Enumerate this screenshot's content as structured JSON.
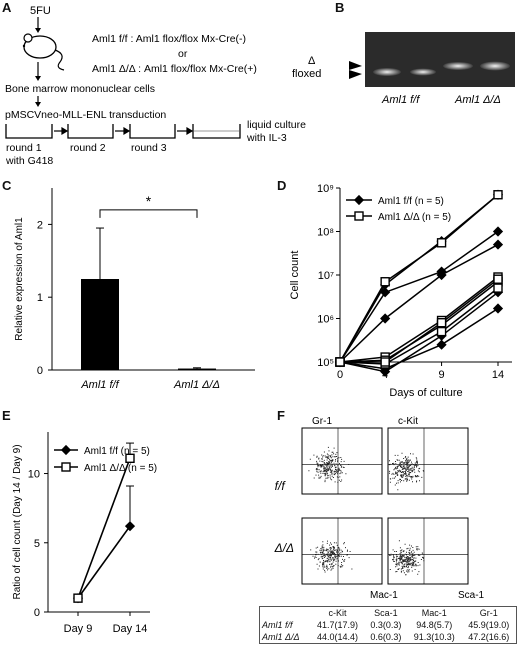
{
  "panels": {
    "A": "A",
    "B": "B",
    "C": "C",
    "D": "D",
    "E": "E",
    "F": "F"
  },
  "panelA": {
    "drug": "5FU",
    "genotype_ff": "Aml1 f/f : Aml1 flox/flox Mx-Cre(-)",
    "or": "or",
    "genotype_dd": "Aml1 Δ/Δ : Aml1 flox/flox Mx-Cre(+)",
    "cells": "Bone marrow mononuclear cells",
    "transduction": "pMSCVneo-MLL-ENL transduction",
    "round1": "round 1",
    "round2": "round 2",
    "round3": "round 3",
    "g418": "with G418",
    "liquid1": "liquid culture",
    "liquid2": "with IL-3"
  },
  "panelB": {
    "band_delta": "Δ",
    "band_floxed": "floxed",
    "lane_ff": "Aml1 f/f",
    "lane_dd": "Aml1 Δ/Δ"
  },
  "chart_data": [
    {
      "id": "C",
      "type": "bar",
      "categories": [
        "Aml1 f/f",
        "Aml1 Δ/Δ"
      ],
      "values": [
        1.25,
        0.02
      ],
      "errors": [
        0.7,
        0.01
      ],
      "ylabel": "Relative expression of Aml1",
      "ylim": [
        0,
        2.5
      ],
      "yticks": [
        "0",
        "1",
        "2"
      ],
      "annotation": "*",
      "colors": [
        "#000000",
        "#000000"
      ]
    },
    {
      "id": "D",
      "type": "line",
      "x": [
        0,
        4,
        9,
        14
      ],
      "xticks": [
        "0",
        "4",
        "9",
        "14"
      ],
      "xlabel": "Days of culture",
      "ylabel": "Cell count",
      "yscale": "log",
      "ylim": [
        100000,
        1000000000
      ],
      "yticks": [
        "10⁵",
        "10⁶",
        "10⁷",
        "10⁸",
        "10⁹"
      ],
      "legend": [
        "Aml1 f/f (n = 5)",
        "Aml1 Δ/Δ (n = 5)"
      ],
      "series": [
        {
          "group": "ff",
          "values": [
            100000,
            1000000,
            10000000,
            50000000
          ]
        },
        {
          "group": "ff",
          "values": [
            100000,
            4000000,
            12000000,
            100000000
          ]
        },
        {
          "group": "ff",
          "values": [
            100000,
            6000000,
            60000000,
            700000000
          ]
        },
        {
          "group": "ff",
          "values": [
            100000,
            60000,
            400000,
            4000000
          ]
        },
        {
          "group": "ff",
          "values": [
            100000,
            70000,
            250000,
            1700000
          ]
        },
        {
          "group": "dd",
          "values": [
            100000,
            7000000,
            55000000,
            700000000
          ]
        },
        {
          "group": "dd",
          "values": [
            100000,
            130000,
            900000,
            9000000
          ]
        },
        {
          "group": "dd",
          "values": [
            100000,
            110000,
            700000,
            7000000
          ]
        },
        {
          "group": "dd",
          "values": [
            100000,
            90000,
            500000,
            5000000
          ]
        },
        {
          "group": "dd",
          "values": [
            100000,
            100000,
            800000,
            8000000
          ]
        }
      ]
    },
    {
      "id": "E",
      "type": "line",
      "categories": [
        "Day 9",
        "Day 14"
      ],
      "ylabel": "Ratio of cell count (Day 14 / Day 9)",
      "ylim": [
        0,
        13
      ],
      "yticks": [
        "0",
        "5",
        "10"
      ],
      "legend": [
        "Aml1 f/f (n = 5)",
        "Aml1 Δ/Δ (n = 5)"
      ],
      "series": [
        {
          "group": "ff",
          "values": [
            1,
            6.2
          ],
          "error": [
            0,
            2.9
          ]
        },
        {
          "group": "dd",
          "values": [
            1,
            11.1
          ],
          "error": [
            0,
            1.1
          ]
        }
      ]
    }
  ],
  "panelF": {
    "gr1": "Gr-1",
    "ckit": "c-Kit",
    "row_ff": "Aml1 f/f",
    "row_dd": "Aml1 Δ/Δ",
    "mac1": "Mac-1",
    "sca1": "Sca-1",
    "table": {
      "headers": [
        "",
        "c-Kit",
        "Sca-1",
        "Mac-1",
        "Gr-1"
      ],
      "rows": [
        [
          "Aml1 f/f",
          "41.7(17.9)",
          "0.3(0.3)",
          "94.8(5.7)",
          "45.9(19.0)"
        ],
        [
          "Aml1 Δ/Δ",
          "44.0(14.4)",
          "0.6(0.3)",
          "91.3(10.3)",
          "47.2(16.6)"
        ]
      ]
    }
  }
}
